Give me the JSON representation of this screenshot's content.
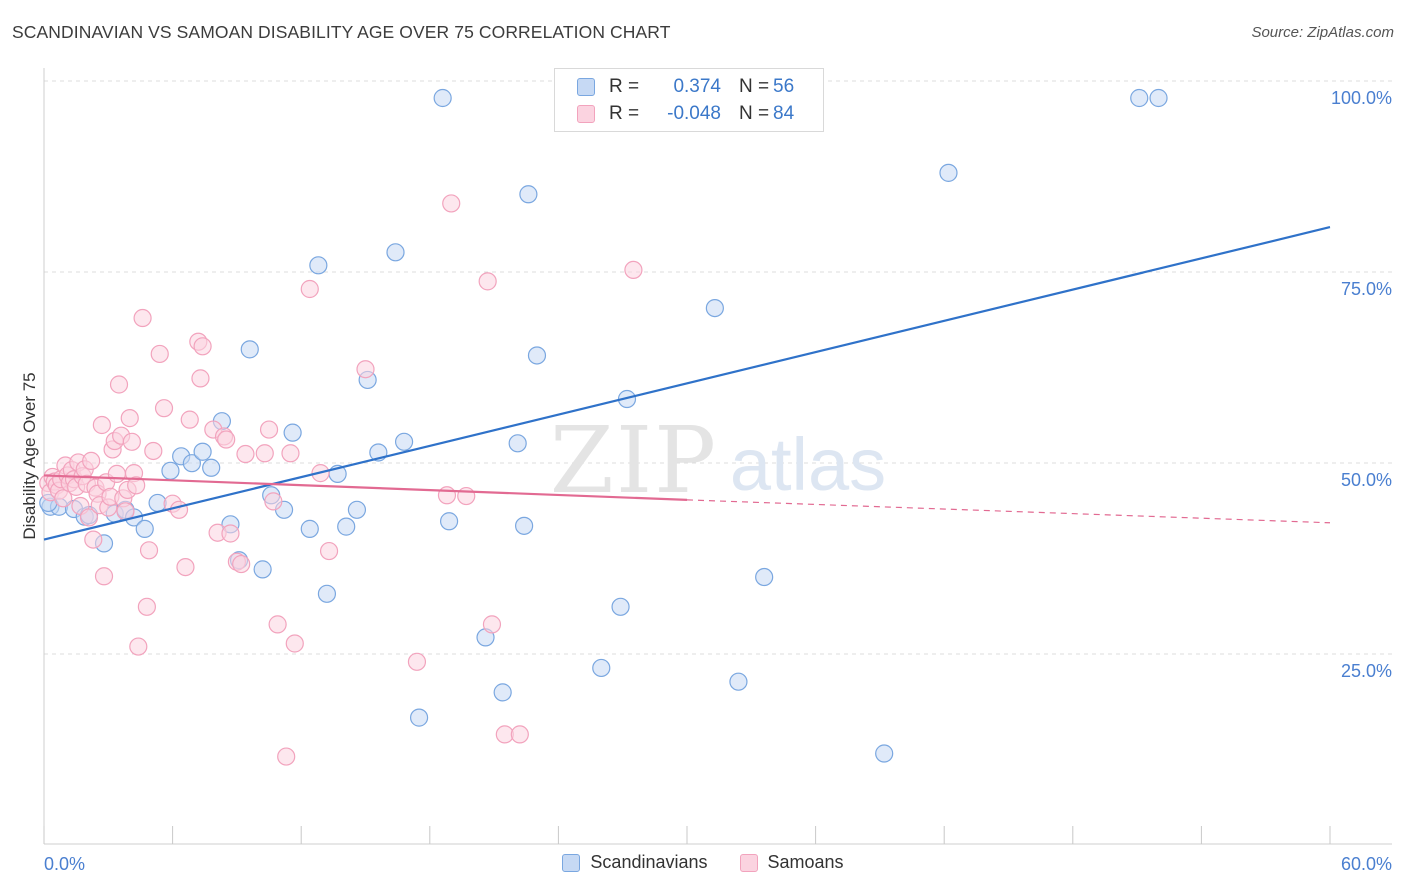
{
  "title": "SCANDINAVIAN VS SAMOAN DISABILITY AGE OVER 75 CORRELATION CHART",
  "source": "Source: ZipAtlas.com",
  "watermark": {
    "zip": "ZIP",
    "atlas": "atlas"
  },
  "legend": {
    "r_label": "R =",
    "n_label": "N =",
    "rows": [
      {
        "r": "0.374",
        "n": "56"
      },
      {
        "r": "-0.048",
        "n": "84"
      }
    ]
  },
  "chart_data": {
    "type": "scatter",
    "xlabel": "",
    "ylabel": "Disability Age Over 75",
    "xlim": [
      0,
      60
    ],
    "ylim": [
      4,
      100
    ],
    "x_tick_labels": {
      "min": "0.0%",
      "max": "60.0%"
    },
    "y_ticks": [
      100,
      75,
      50,
      25
    ],
    "y_tick_labels": [
      "100.0%",
      "75.0%",
      "50.0%",
      "25.0%"
    ],
    "grid": true,
    "legend_position": "top-center",
    "series": [
      {
        "name": "Scandinavians",
        "color": "#7aa7e0",
        "line_color": "#2f72c9",
        "trend": {
          "x0": 0,
          "y0": 42.2,
          "x1": 60,
          "y1": 83.1
        },
        "points": [
          [
            0.3,
            46.5
          ],
          [
            0.7,
            46.5
          ],
          [
            1.4,
            46.2
          ],
          [
            1.9,
            45.2
          ],
          [
            2.1,
            45.4
          ],
          [
            2.8,
            41.7
          ],
          [
            3.3,
            45.6
          ],
          [
            3.8,
            46.1
          ],
          [
            4.2,
            45.1
          ],
          [
            4.7,
            43.6
          ],
          [
            5.3,
            47.0
          ],
          [
            5.9,
            51.2
          ],
          [
            6.4,
            53.1
          ],
          [
            6.9,
            52.2
          ],
          [
            7.4,
            53.7
          ],
          [
            7.8,
            51.6
          ],
          [
            8.3,
            57.7
          ],
          [
            8.7,
            44.2
          ],
          [
            9.1,
            39.5
          ],
          [
            9.6,
            67.1
          ],
          [
            10.2,
            38.3
          ],
          [
            10.6,
            48.0
          ],
          [
            11.2,
            46.1
          ],
          [
            11.6,
            56.2
          ],
          [
            12.4,
            43.6
          ],
          [
            12.8,
            78.1
          ],
          [
            13.2,
            35.1
          ],
          [
            13.7,
            50.8
          ],
          [
            14.1,
            43.9
          ],
          [
            14.6,
            46.1
          ],
          [
            15.1,
            63.1
          ],
          [
            15.6,
            53.6
          ],
          [
            16.4,
            79.8
          ],
          [
            16.8,
            55.0
          ],
          [
            17.5,
            18.9
          ],
          [
            18.6,
            100.0
          ],
          [
            18.9,
            44.6
          ],
          [
            20.6,
            29.4
          ],
          [
            21.4,
            22.2
          ],
          [
            22.1,
            54.8
          ],
          [
            22.4,
            44.0
          ],
          [
            22.6,
            87.4
          ],
          [
            23.0,
            66.3
          ],
          [
            26.0,
            25.4
          ],
          [
            26.9,
            33.4
          ],
          [
            27.2,
            60.6
          ],
          [
            28.0,
            100.0
          ],
          [
            28.5,
            100.0
          ],
          [
            31.3,
            72.5
          ],
          [
            32.4,
            23.6
          ],
          [
            33.6,
            37.3
          ],
          [
            39.2,
            14.2
          ],
          [
            42.2,
            90.2
          ],
          [
            51.1,
            100.0
          ],
          [
            52.0,
            100.0
          ],
          [
            0.2,
            47.0
          ]
        ]
      },
      {
        "name": "Samoans",
        "color": "#f2a3bd",
        "line_color": "#e26a92",
        "trend_solid": {
          "x0": 0,
          "y0": 50.6,
          "x1": 30,
          "y1": 47.4
        },
        "trend_dashed": {
          "x0": 30,
          "y0": 47.4,
          "x1": 60,
          "y1": 44.4
        },
        "points": [
          [
            0.2,
            49.6
          ],
          [
            0.3,
            48.4
          ],
          [
            0.4,
            50.4
          ],
          [
            0.5,
            49.8
          ],
          [
            0.6,
            49.3
          ],
          [
            0.7,
            48.6
          ],
          [
            0.8,
            50.1
          ],
          [
            0.9,
            47.6
          ],
          [
            1.0,
            51.9
          ],
          [
            1.1,
            50.6
          ],
          [
            1.2,
            49.6
          ],
          [
            1.3,
            51.3
          ],
          [
            1.4,
            50.1
          ],
          [
            1.5,
            49.1
          ],
          [
            1.6,
            52.3
          ],
          [
            1.7,
            46.6
          ],
          [
            1.8,
            50.5
          ],
          [
            1.9,
            51.4
          ],
          [
            2.0,
            49.5
          ],
          [
            2.1,
            45.1
          ],
          [
            2.2,
            52.5
          ],
          [
            2.3,
            42.2
          ],
          [
            2.4,
            49.0
          ],
          [
            2.5,
            48.2
          ],
          [
            2.6,
            46.7
          ],
          [
            2.7,
            57.2
          ],
          [
            2.8,
            37.4
          ],
          [
            2.9,
            49.7
          ],
          [
            3.0,
            46.4
          ],
          [
            3.1,
            47.8
          ],
          [
            3.2,
            54.0
          ],
          [
            3.3,
            55.1
          ],
          [
            3.4,
            50.8
          ],
          [
            3.5,
            62.5
          ],
          [
            3.6,
            55.8
          ],
          [
            3.7,
            47.6
          ],
          [
            3.8,
            45.9
          ],
          [
            3.9,
            48.7
          ],
          [
            4.0,
            58.1
          ],
          [
            4.1,
            55.0
          ],
          [
            4.2,
            50.9
          ],
          [
            4.3,
            49.3
          ],
          [
            4.4,
            28.2
          ],
          [
            4.6,
            71.2
          ],
          [
            4.8,
            33.4
          ],
          [
            4.9,
            40.8
          ],
          [
            5.1,
            53.8
          ],
          [
            5.4,
            66.5
          ],
          [
            5.6,
            59.4
          ],
          [
            6.0,
            46.9
          ],
          [
            6.3,
            46.1
          ],
          [
            6.6,
            38.6
          ],
          [
            6.8,
            57.9
          ],
          [
            7.2,
            68.1
          ],
          [
            7.3,
            63.3
          ],
          [
            7.4,
            67.5
          ],
          [
            7.9,
            56.6
          ],
          [
            8.1,
            43.1
          ],
          [
            8.4,
            55.7
          ],
          [
            8.5,
            55.3
          ],
          [
            8.7,
            43.0
          ],
          [
            9.0,
            39.3
          ],
          [
            9.2,
            39.0
          ],
          [
            9.4,
            53.4
          ],
          [
            10.3,
            53.5
          ],
          [
            10.5,
            56.6
          ],
          [
            10.7,
            47.2
          ],
          [
            10.9,
            31.1
          ],
          [
            11.3,
            13.8
          ],
          [
            11.5,
            53.5
          ],
          [
            11.7,
            28.6
          ],
          [
            12.4,
            75.0
          ],
          [
            12.9,
            50.9
          ],
          [
            13.3,
            40.7
          ],
          [
            15.0,
            64.5
          ],
          [
            17.4,
            26.2
          ],
          [
            18.8,
            48.0
          ],
          [
            19.0,
            86.2
          ],
          [
            19.7,
            47.9
          ],
          [
            20.7,
            76.0
          ],
          [
            20.9,
            31.1
          ],
          [
            21.5,
            16.7
          ],
          [
            22.2,
            16.7
          ],
          [
            27.5,
            77.5
          ]
        ]
      }
    ]
  }
}
